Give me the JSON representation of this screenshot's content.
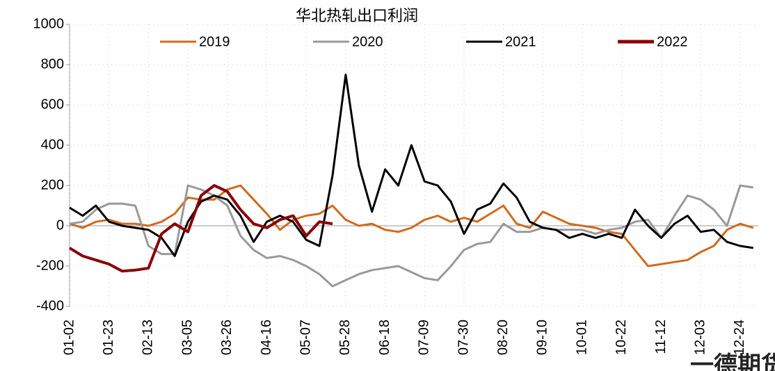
{
  "chart_data": {
    "type": "line",
    "title": "华北热轧出口利润",
    "watermark": "一德期货",
    "categories": [
      "01-02",
      null,
      null,
      "01-23",
      null,
      null,
      "02-13",
      null,
      null,
      "03-05",
      null,
      null,
      "03-26",
      null,
      null,
      "04-16",
      null,
      null,
      "05-07",
      null,
      null,
      "05-28",
      null,
      null,
      "06-18",
      null,
      null,
      "07-09",
      null,
      null,
      "07-30",
      null,
      null,
      "08-20",
      null,
      null,
      "09-10",
      null,
      null,
      "10-01",
      null,
      null,
      "10-22",
      null,
      null,
      "11-12",
      null,
      null,
      "12-03",
      null,
      null,
      "12-24",
      null
    ],
    "series": [
      {
        "name": "2019",
        "color": "#d2691e",
        "values": [
          10,
          -10,
          20,
          30,
          10,
          10,
          0,
          20,
          60,
          140,
          130,
          130,
          180,
          200,
          130,
          60,
          -20,
          30,
          50,
          60,
          100,
          30,
          0,
          10,
          -20,
          -30,
          -10,
          30,
          50,
          20,
          40,
          20,
          60,
          100,
          10,
          -10,
          70,
          40,
          10,
          0,
          -10,
          -30,
          -40,
          -120,
          -200,
          -190,
          -180,
          -170,
          -130,
          -100,
          -20,
          10,
          -10
        ]
      },
      {
        "name": "2020",
        "color": "#999999",
        "values": [
          10,
          20,
          80,
          110,
          110,
          100,
          -100,
          -140,
          -140,
          200,
          180,
          150,
          100,
          -50,
          -120,
          -160,
          -150,
          -170,
          -200,
          -240,
          -300,
          -270,
          -240,
          -220,
          -210,
          -200,
          -230,
          -260,
          -270,
          -200,
          -120,
          -90,
          -80,
          10,
          -30,
          -30,
          -10,
          -20,
          -20,
          -20,
          -40,
          -20,
          -10,
          20,
          30,
          -60,
          50,
          150,
          130,
          80,
          0,
          200,
          190
        ]
      },
      {
        "name": "2021",
        "color": "#000000",
        "values": [
          90,
          50,
          100,
          20,
          0,
          -10,
          -20,
          -60,
          -150,
          20,
          120,
          150,
          130,
          50,
          -80,
          20,
          50,
          20,
          -70,
          -100,
          250,
          750,
          300,
          70,
          280,
          200,
          400,
          220,
          200,
          120,
          -40,
          80,
          110,
          210,
          140,
          20,
          -10,
          -20,
          -60,
          -40,
          -60,
          -40,
          -60,
          80,
          0,
          -60,
          10,
          50,
          -30,
          -20,
          -80,
          -100,
          -110
        ]
      },
      {
        "name": "2022",
        "color": "#8b0000",
        "values": [
          -110,
          -150,
          -170,
          -190,
          -225,
          -220,
          -210,
          -40,
          10,
          -30,
          150,
          200,
          170,
          80,
          10,
          -10,
          30,
          50,
          -50,
          20,
          10,
          null,
          null,
          null,
          null,
          null,
          null,
          null,
          null,
          null,
          null,
          null,
          null,
          null,
          null,
          null,
          null,
          null,
          null,
          null,
          null,
          null,
          null,
          null,
          null,
          null,
          null,
          null,
          null,
          null,
          null,
          null,
          null
        ]
      }
    ],
    "ylim": [
      -400,
      1000
    ],
    "yticks": [
      -400,
      -200,
      0,
      200,
      400,
      600,
      800,
      1000
    ],
    "grid": true,
    "legend": "top"
  }
}
